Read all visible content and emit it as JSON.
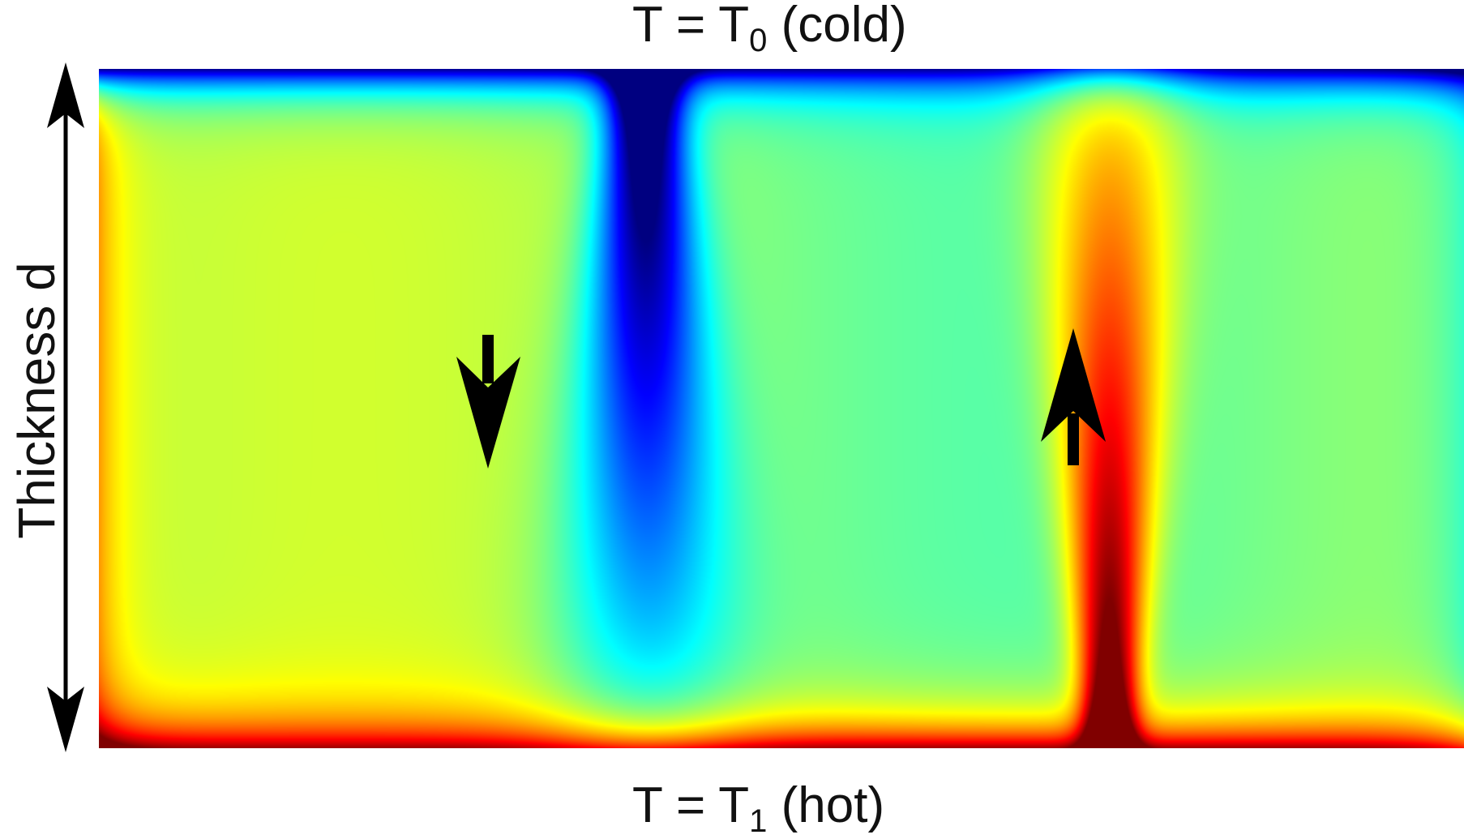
{
  "labels": {
    "top": {
      "prefix": "T = T",
      "subscript": "0",
      "suffix": " (cold)"
    },
    "bottom": {
      "prefix": "T = T",
      "subscript": "1",
      "suffix": " (hot)"
    },
    "thickness": "Thickness d"
  },
  "colormap": "jet",
  "flow": {
    "downward_arrow": "down",
    "upward_arrow": "up"
  },
  "colors": {
    "arrow": "#000000",
    "background": "#ffffff"
  }
}
